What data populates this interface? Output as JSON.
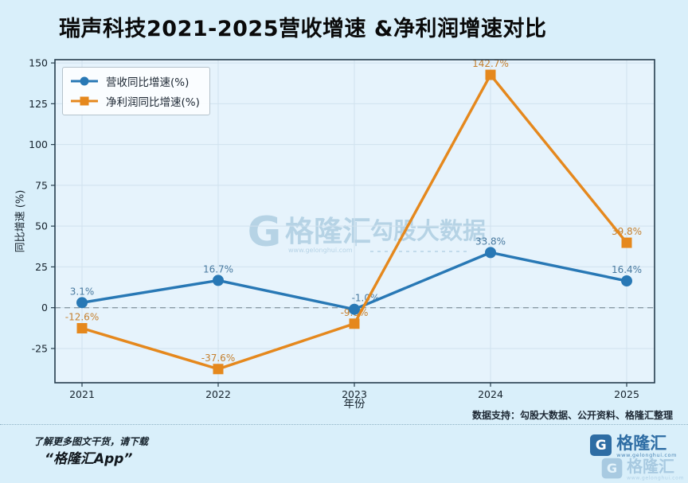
{
  "title": "瑞声科技2021-2025营收增速 &净利润增速对比",
  "chart_data": {
    "type": "line",
    "x": [
      "2021",
      "2022",
      "2023",
      "2024",
      "2025"
    ],
    "xlabel": "年份",
    "ylabel": "同比增速 (%)",
    "ylim": [
      -46,
      152
    ],
    "yticks": [
      150,
      125,
      100,
      75,
      50,
      25,
      0,
      -25
    ],
    "grid": true,
    "zero_line": true,
    "legend_position": "top-left",
    "series": [
      {
        "name": "营收同比增速(%)",
        "marker": "circle",
        "color": "#2878b5",
        "label_color": "#48799f",
        "values": [
          3.1,
          16.7,
          -1.0,
          33.8,
          16.4
        ],
        "labels": [
          "3.1%",
          "16.7%",
          "-1.0%",
          "33.8%",
          "16.4%"
        ]
      },
      {
        "name": "净利润同比增速(%)",
        "marker": "square",
        "color": "#e5881d",
        "label_color": "#c5802f",
        "values": [
          -12.6,
          -37.6,
          -9.8,
          142.7,
          39.8
        ],
        "labels": [
          "-12.6%",
          "-37.6%",
          "-9.8%",
          "142.7%",
          "39.8%"
        ]
      }
    ]
  },
  "watermark": {
    "letter": "G",
    "brand": "格隆汇",
    "brand_url": "www.gelonghui.com",
    "divider": "|",
    "right_text": "勾股大数据"
  },
  "source_note": "数据支持：勾股大数据、公开资料、格隆汇整理",
  "footer": {
    "line1": "了解更多图文干货，请下载",
    "line2": "“格隆汇App”",
    "brand": {
      "letter": "G",
      "name": "格隆汇",
      "url": "www.gelonghui.com"
    }
  },
  "colors": {
    "bg": "#d9effa",
    "plot_bg": "#e6f3fc",
    "plot_border": "#263d4d",
    "grid": "#d0e2ee",
    "zero_line": "#8a9aa5",
    "tick_text": "#16222c",
    "watermark": "#8fb9d4",
    "brand_blue": "#2e6da4"
  }
}
